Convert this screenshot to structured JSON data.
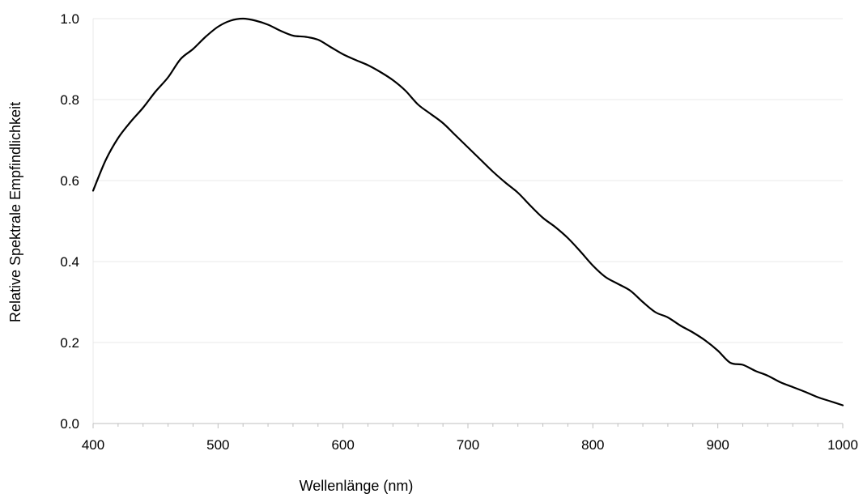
{
  "chart_data": {
    "type": "line",
    "title": "",
    "xlabel": "Wellenlänge (nm)",
    "ylabel": "Relative Spektrale Empfindlichkeit",
    "xlim": [
      400,
      1000
    ],
    "ylim": [
      0,
      1.0
    ],
    "grid": true,
    "colors": {
      "line": "#000000",
      "grid": "#e8e8e8",
      "axis": "#bfbfbf"
    },
    "x_ticks": [
      "400",
      "500",
      "600",
      "700",
      "800",
      "900",
      "1000"
    ],
    "y_ticks": [
      "0.0",
      "0.2",
      "0.4",
      "0.6",
      "0.8",
      "1.0"
    ],
    "series": [
      {
        "x": [
          400,
          410,
          420,
          430,
          440,
          450,
          460,
          470,
          480,
          490,
          500,
          510,
          520,
          530,
          540,
          550,
          560,
          570,
          580,
          590,
          600,
          610,
          620,
          630,
          640,
          650,
          660,
          670,
          680,
          690,
          700,
          710,
          720,
          730,
          740,
          750,
          760,
          770,
          780,
          790,
          800,
          810,
          820,
          830,
          840,
          850,
          860,
          870,
          880,
          890,
          900,
          910,
          920,
          930,
          940,
          950,
          960,
          970,
          980,
          990,
          1000
        ],
        "values": [
          0.575,
          0.65,
          0.705,
          0.745,
          0.78,
          0.82,
          0.855,
          0.9,
          0.925,
          0.955,
          0.98,
          0.995,
          1.0,
          0.995,
          0.985,
          0.97,
          0.958,
          0.955,
          0.948,
          0.93,
          0.912,
          0.898,
          0.885,
          0.868,
          0.848,
          0.822,
          0.788,
          0.765,
          0.742,
          0.712,
          0.682,
          0.652,
          0.622,
          0.595,
          0.57,
          0.538,
          0.508,
          0.485,
          0.458,
          0.425,
          0.39,
          0.362,
          0.345,
          0.328,
          0.3,
          0.275,
          0.262,
          0.242,
          0.225,
          0.205,
          0.18,
          0.15,
          0.145,
          0.13,
          0.118,
          0.102,
          0.09,
          0.078,
          0.065,
          0.055,
          0.045
        ]
      }
    ]
  }
}
